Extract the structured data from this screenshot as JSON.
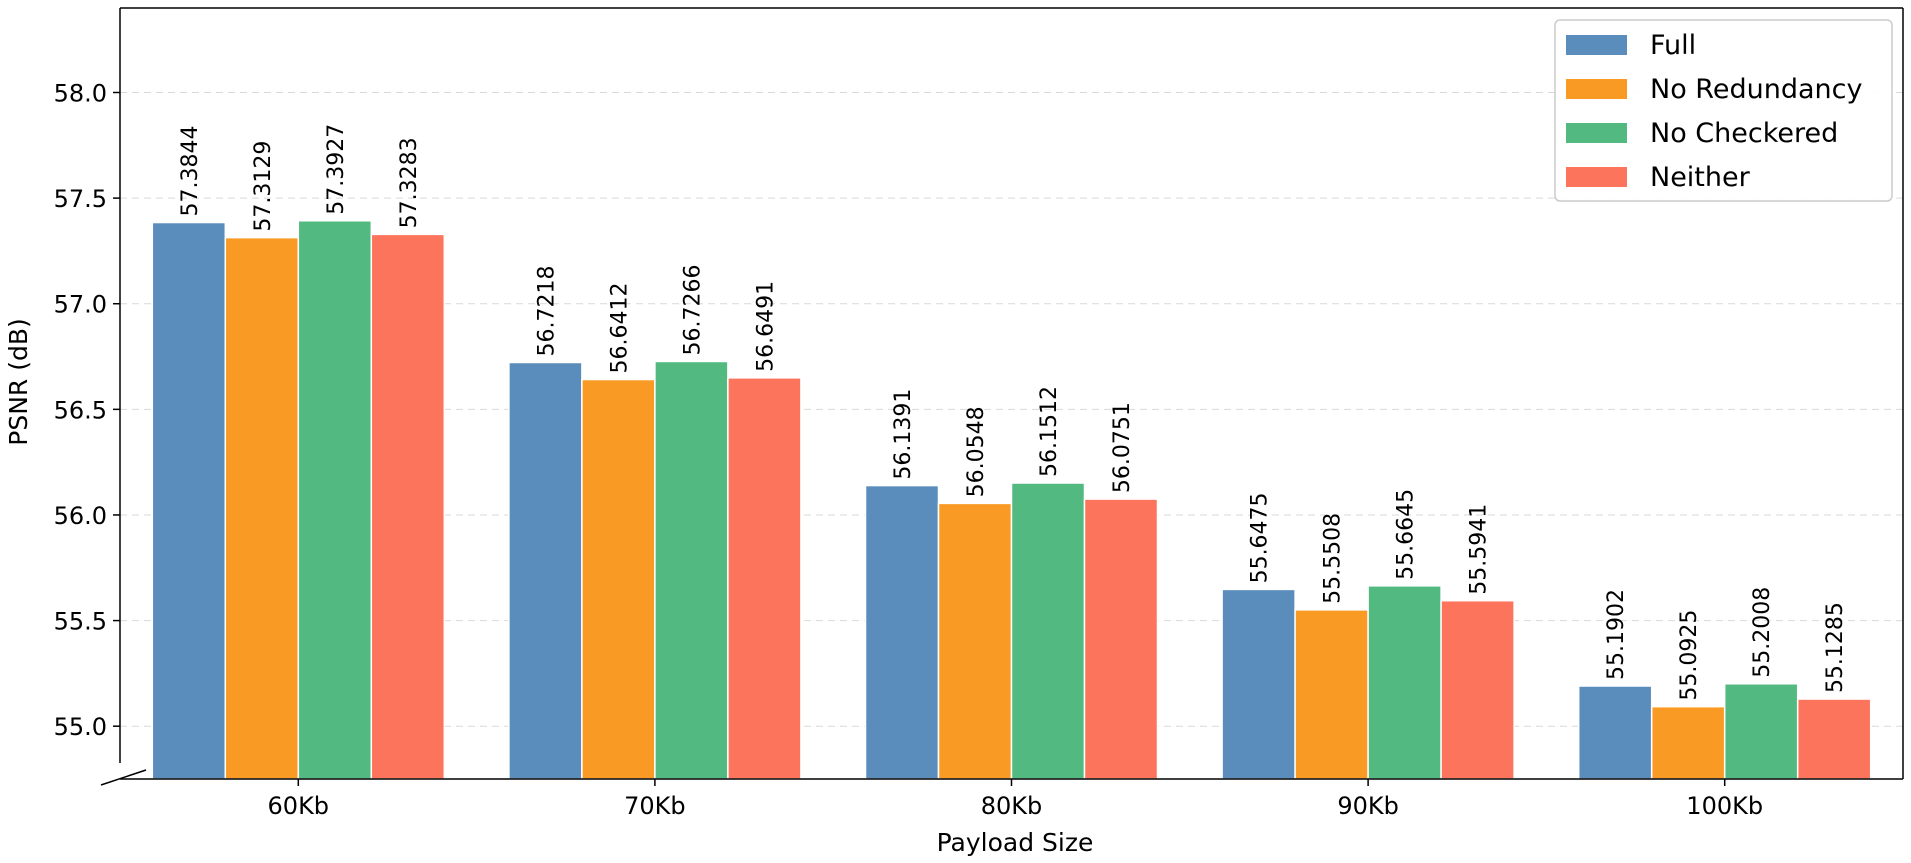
{
  "chart_data": {
    "type": "bar",
    "title": "",
    "xlabel": "Payload Size",
    "ylabel": "PSNR (dB)",
    "categories": [
      "60Kb",
      "70Kb",
      "80Kb",
      "90Kb",
      "100Kb"
    ],
    "ylim": [
      54.75,
      58.4
    ],
    "yticks": [
      "55.0",
      "55.5",
      "56.0",
      "56.5",
      "57.0",
      "57.5",
      "58.0"
    ],
    "grid": "horizontal dashed",
    "legend_position": "top-right",
    "axis_break": "bottom-left",
    "series": [
      {
        "name": "Full",
        "color": "#5B8DBC",
        "values": [
          57.3844,
          56.7218,
          56.1391,
          55.6475,
          55.1902
        ],
        "labels": [
          "57.3844",
          "56.7218",
          "56.1391",
          "55.6475",
          "55.1902"
        ]
      },
      {
        "name": "No Redundancy",
        "color": "#F99A25",
        "values": [
          57.3129,
          56.6412,
          56.0548,
          55.5508,
          55.0925
        ],
        "labels": [
          "57.3129",
          "56.6412",
          "56.0548",
          "55.5508",
          "55.0925"
        ]
      },
      {
        "name": "No Checkered",
        "color": "#52B981",
        "values": [
          57.3927,
          56.7266,
          56.1512,
          55.6645,
          55.2008
        ],
        "labels": [
          "57.3927",
          "56.7266",
          "56.1512",
          "55.6645",
          "55.2008"
        ]
      },
      {
        "name": "Neither",
        "color": "#FD745C",
        "values": [
          57.3283,
          56.6491,
          56.0751,
          55.5941,
          55.1285
        ],
        "labels": [
          "57.3283",
          "56.6491",
          "56.0751",
          "55.5941",
          "55.1285"
        ]
      }
    ]
  }
}
